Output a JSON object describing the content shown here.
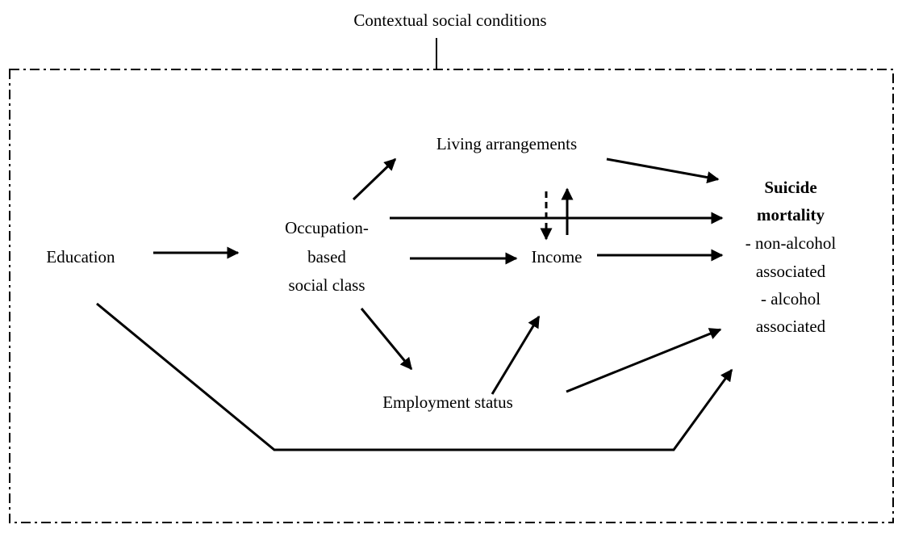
{
  "title": "Contextual social conditions",
  "nodes": [
    {
      "lines": [
        "Education"
      ]
    },
    {
      "lines": [
        "Occupation-",
        "based",
        "social class"
      ]
    },
    {
      "lines": [
        "Living arrangements"
      ]
    },
    {
      "lines": [
        "Income"
      ]
    },
    {
      "lines": [
        "Employment status"
      ]
    }
  ],
  "outcome": {
    "title_lines": [
      "Suicide",
      "mortality"
    ],
    "lines": [
      "- non-alcohol",
      "associated",
      "- alcohol",
      "associated"
    ]
  }
}
